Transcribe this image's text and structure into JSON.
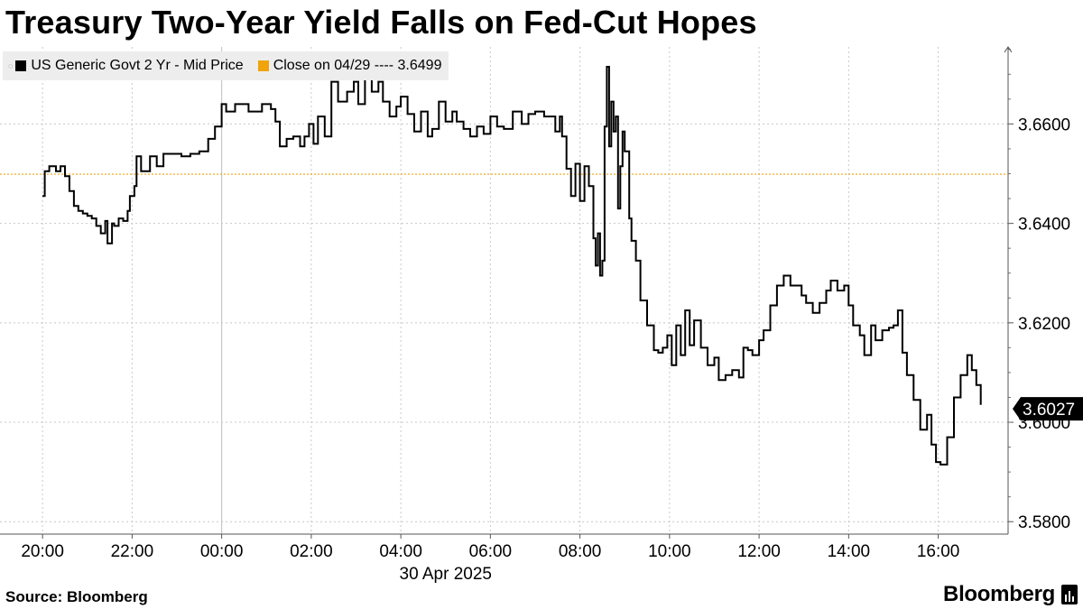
{
  "title": "Treasury Two-Year Yield Falls on Fed-Cut Hopes",
  "source": "Source: Bloomberg",
  "brand": "Bloomberg",
  "legend": {
    "series_label": "US Generic Govt 2 Yr - Mid Price",
    "close_label": "Close on 04/29 ---- 3.6499"
  },
  "last_value_label": "3.6027",
  "colors": {
    "series": "#000000",
    "close": "#f0a30a",
    "grid": "#c8c8c8",
    "tag": "#000000"
  },
  "chart_data": {
    "type": "line",
    "title": "Treasury Two-Year Yield Falls on Fed-Cut Hopes",
    "xlabel": "30 Apr 2025",
    "ylabel": "",
    "x_unit": "hours relative to 00:00 on 30 Apr 2025",
    "x_ticks": [
      {
        "x": -4,
        "label": "20:00"
      },
      {
        "x": -2,
        "label": "22:00"
      },
      {
        "x": 0,
        "label": "00:00"
      },
      {
        "x": 2,
        "label": "02:00"
      },
      {
        "x": 4,
        "label": "04:00"
      },
      {
        "x": 6,
        "label": "06:00"
      },
      {
        "x": 8,
        "label": "08:00"
      },
      {
        "x": 10,
        "label": "10:00"
      },
      {
        "x": 12,
        "label": "12:00"
      },
      {
        "x": 14,
        "label": "14:00"
      },
      {
        "x": 16,
        "label": "16:00"
      }
    ],
    "y_ticks": [
      {
        "y": 3.58,
        "label": "3.5800"
      },
      {
        "y": 3.6,
        "label": "3.6000"
      },
      {
        "y": 3.62,
        "label": "3.6200"
      },
      {
        "y": 3.64,
        "label": "3.6400"
      },
      {
        "y": 3.66,
        "label": "3.6600"
      }
    ],
    "xlim": [
      -4.95,
      17.56
    ],
    "ylim": [
      3.5775,
      3.6755
    ],
    "grid": true,
    "legend_position": "top-left",
    "reference_line": {
      "name": "Close on 04/29",
      "y": 3.6499
    },
    "series": [
      {
        "name": "US Generic Govt 2 Yr - Mid Price",
        "color": "#000000",
        "x": [
          -4.0,
          -3.95,
          -3.85,
          -3.7,
          -3.6,
          -3.5,
          -3.4,
          -3.3,
          -3.2,
          -3.1,
          -3.0,
          -2.9,
          -2.8,
          -2.7,
          -2.6,
          -2.55,
          -2.45,
          -2.4,
          -2.3,
          -2.2,
          -2.1,
          -2.05,
          -1.95,
          -1.9,
          -1.8,
          -1.6,
          -1.45,
          -1.3,
          -1.1,
          -0.9,
          -0.7,
          -0.5,
          -0.3,
          -0.15,
          0.0,
          0.1,
          0.3,
          0.6,
          0.9,
          1.1,
          1.2,
          1.3,
          1.45,
          1.6,
          1.75,
          1.85,
          1.95,
          2.05,
          2.15,
          2.3,
          2.45,
          2.6,
          2.8,
          2.95,
          3.05,
          3.2,
          3.35,
          3.5,
          3.6,
          3.75,
          3.9,
          4.0,
          4.15,
          4.3,
          4.45,
          4.6,
          4.7,
          4.85,
          5.0,
          5.15,
          5.25,
          5.4,
          5.55,
          5.7,
          5.85,
          6.0,
          6.15,
          6.3,
          6.5,
          6.7,
          6.85,
          7.0,
          7.2,
          7.45,
          7.55,
          7.6,
          7.7,
          7.8,
          7.9,
          8.0,
          8.1,
          8.2,
          8.3,
          8.35,
          8.4,
          8.45,
          8.5,
          8.55,
          8.6,
          8.65,
          8.7,
          8.75,
          8.8,
          8.85,
          8.9,
          8.95,
          9.0,
          9.1,
          9.15,
          9.25,
          9.35,
          9.5,
          9.65,
          9.75,
          9.85,
          9.95,
          10.05,
          10.15,
          10.25,
          10.35,
          10.45,
          10.55,
          10.7,
          10.85,
          11.0,
          11.1,
          11.25,
          11.4,
          11.55,
          11.65,
          11.75,
          11.85,
          12.0,
          12.1,
          12.25,
          12.4,
          12.55,
          12.7,
          12.8,
          12.95,
          13.05,
          13.2,
          13.35,
          13.5,
          13.6,
          13.75,
          13.9,
          14.0,
          14.1,
          14.25,
          14.35,
          14.5,
          14.6,
          14.75,
          14.9,
          15.0,
          15.1,
          15.2,
          15.3,
          15.45,
          15.6,
          15.75,
          15.85,
          15.95,
          16.05,
          16.2,
          16.35,
          16.5,
          16.65,
          16.75,
          16.85,
          16.95
        ],
        "y": [
          3.6455,
          3.6505,
          3.6515,
          3.6505,
          3.6515,
          3.6495,
          3.6465,
          3.6435,
          3.6425,
          3.642,
          3.6415,
          3.641,
          3.6395,
          3.638,
          3.6405,
          3.636,
          3.64,
          3.6395,
          3.641,
          3.6405,
          3.6425,
          3.6455,
          3.6475,
          3.6535,
          3.6505,
          3.6535,
          3.6515,
          3.654,
          3.654,
          3.6535,
          3.654,
          3.6545,
          3.657,
          3.6595,
          3.664,
          3.6625,
          3.664,
          3.6625,
          3.664,
          3.663,
          3.6605,
          3.6555,
          3.657,
          3.6575,
          3.6555,
          3.6575,
          3.66,
          3.656,
          3.6615,
          3.6575,
          3.6685,
          3.6645,
          3.6665,
          3.6685,
          3.664,
          3.67,
          3.6665,
          3.6685,
          3.6645,
          3.6615,
          3.6635,
          3.6655,
          3.662,
          3.6585,
          3.6625,
          3.6575,
          3.659,
          3.6645,
          3.6605,
          3.6625,
          3.6605,
          3.659,
          3.6575,
          3.6595,
          3.658,
          3.6615,
          3.6595,
          3.659,
          3.6625,
          3.66,
          3.662,
          3.6625,
          3.6615,
          3.6585,
          3.6615,
          3.6575,
          3.651,
          3.6455,
          3.652,
          3.6445,
          3.6515,
          3.6475,
          3.637,
          3.6315,
          3.638,
          3.6295,
          3.6325,
          3.6595,
          3.6715,
          3.6555,
          3.6645,
          3.6585,
          3.6615,
          3.643,
          3.6515,
          3.6585,
          3.6545,
          3.641,
          3.6365,
          3.6325,
          3.6245,
          3.6195,
          3.6145,
          3.614,
          3.615,
          3.6175,
          3.6115,
          3.6195,
          3.6135,
          3.6225,
          3.6155,
          3.6205,
          3.615,
          3.6115,
          3.613,
          3.6085,
          3.6095,
          3.6105,
          3.609,
          3.615,
          3.6145,
          3.6135,
          3.6165,
          3.6185,
          3.6235,
          3.6275,
          3.6295,
          3.6275,
          3.6275,
          3.6255,
          3.624,
          3.622,
          3.624,
          3.6265,
          3.6285,
          3.6265,
          3.6275,
          3.6235,
          3.6195,
          3.6175,
          3.6135,
          3.6195,
          3.6165,
          3.6185,
          3.619,
          3.6195,
          3.6225,
          3.614,
          3.6095,
          3.6045,
          3.5985,
          3.6015,
          3.5955,
          3.592,
          3.5915,
          3.597,
          3.605,
          3.6095,
          3.6135,
          3.6105,
          3.6075,
          3.6035
        ]
      }
    ]
  }
}
